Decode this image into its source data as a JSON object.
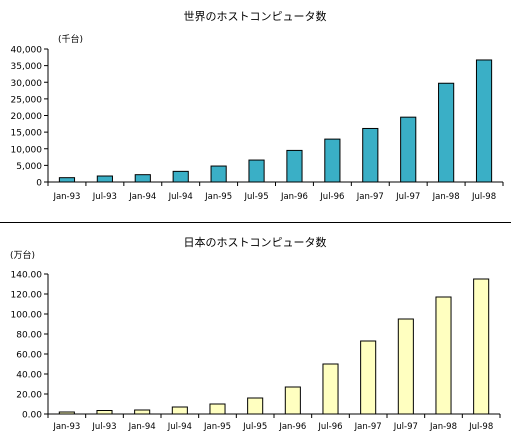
{
  "chart_data": [
    {
      "type": "bar",
      "title": "世界のホストコンピュータ数",
      "unit_label": "(千台)",
      "categories": [
        "Jan-93",
        "Jul-93",
        "Jan-94",
        "Jul-94",
        "Jan-95",
        "Jul-95",
        "Jan-96",
        "Jul-96",
        "Jan-97",
        "Jul-97",
        "Jan-98",
        "Jul-98"
      ],
      "values": [
        1300,
        1800,
        2200,
        3200,
        4800,
        6600,
        9500,
        12900,
        16100,
        19500,
        29700,
        36700
      ],
      "ylim": [
        0,
        40000
      ],
      "yticks": [
        "0",
        "5,000",
        "10,000",
        "15,000",
        "20,000",
        "25,000",
        "30,000",
        "35,000",
        "40,000"
      ],
      "bar_color": "#3aafc6",
      "grid": false
    },
    {
      "type": "bar",
      "title": "日本のホストコンピュータ数",
      "unit_label": "(万台)",
      "categories": [
        "Jan-93",
        "Jul-93",
        "Jan-94",
        "Jul-94",
        "Jan-95",
        "Jul-95",
        "Jan-96",
        "Jul-96",
        "Jan-97",
        "Jul-97",
        "Jan-98",
        "Jul-98"
      ],
      "values": [
        2.0,
        3.5,
        4.0,
        7.0,
        10.0,
        16.0,
        27.0,
        50.0,
        73.0,
        95.0,
        117.0,
        135.0
      ],
      "ylim": [
        0,
        140
      ],
      "yticks": [
        "0.00",
        "20.00",
        "40.00",
        "60.00",
        "80.00",
        "100.00",
        "120.00",
        "140.00"
      ],
      "bar_color": "#ffffc0",
      "grid": false
    }
  ]
}
